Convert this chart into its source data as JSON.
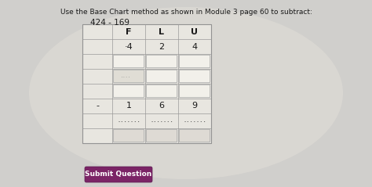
{
  "title_text": "Use the Base Chart method as shown in Module 3 page 60 to subtract:",
  "subtitle_text": "424 - 169",
  "bg_color": "#c8c8c8",
  "table_outer_bg": "#e8e6e0",
  "cell_empty_bg": "#e8e6e0",
  "cell_input_bg": "#f0eeea",
  "cell_dotted_bg": "#dedad4",
  "header_row": [
    "F",
    "L",
    "U"
  ],
  "row1_values": [
    "·4",
    "2",
    "4"
  ],
  "minus_row_values": [
    "1",
    "6",
    "9"
  ],
  "button_text": "Submit Question",
  "button_bg": "#7b2466",
  "button_text_color": "#ffffff",
  "minus_sign": "-",
  "dots": ".......",
  "grid_color": "#aaaaaa",
  "text_color": "#1a1a1a"
}
